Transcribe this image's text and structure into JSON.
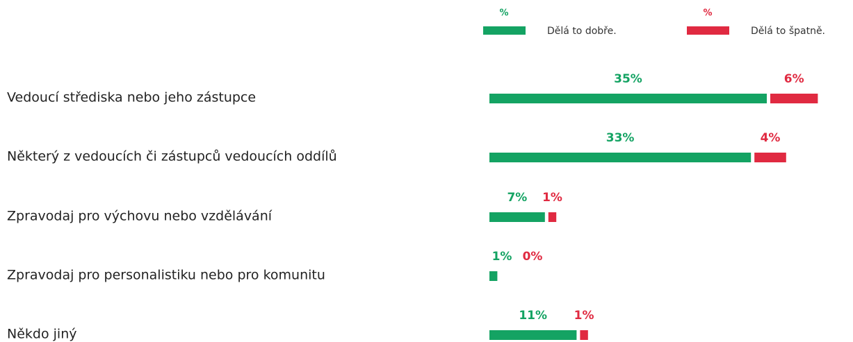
{
  "chart_data": {
    "type": "bar",
    "orientation": "horizontal",
    "stacked": true,
    "categories": [
      "Vedoucí střediska nebo jeho zástupce",
      "Některý z vedoucích či zástupců vedoucích oddílů",
      "Zpravodaj pro výchovu nebo vzdělávání",
      "Zpravodaj pro personalistiku nebo pro komunitu",
      "Někdo jiný"
    ],
    "series": [
      {
        "name": "Dělá to dobře.",
        "color": "#14a363",
        "unit": "%",
        "values": [
          35,
          33,
          7,
          1,
          11
        ],
        "value_labels": [
          "35%",
          "33%",
          "7%",
          "1%",
          "11%"
        ]
      },
      {
        "name": "Dělá to špatně.",
        "color": "#e02a41",
        "unit": "%",
        "values": [
          6,
          4,
          1,
          0,
          1
        ],
        "value_labels": [
          "6%",
          "4%",
          "1%",
          "0%",
          "1%"
        ]
      }
    ]
  }
}
